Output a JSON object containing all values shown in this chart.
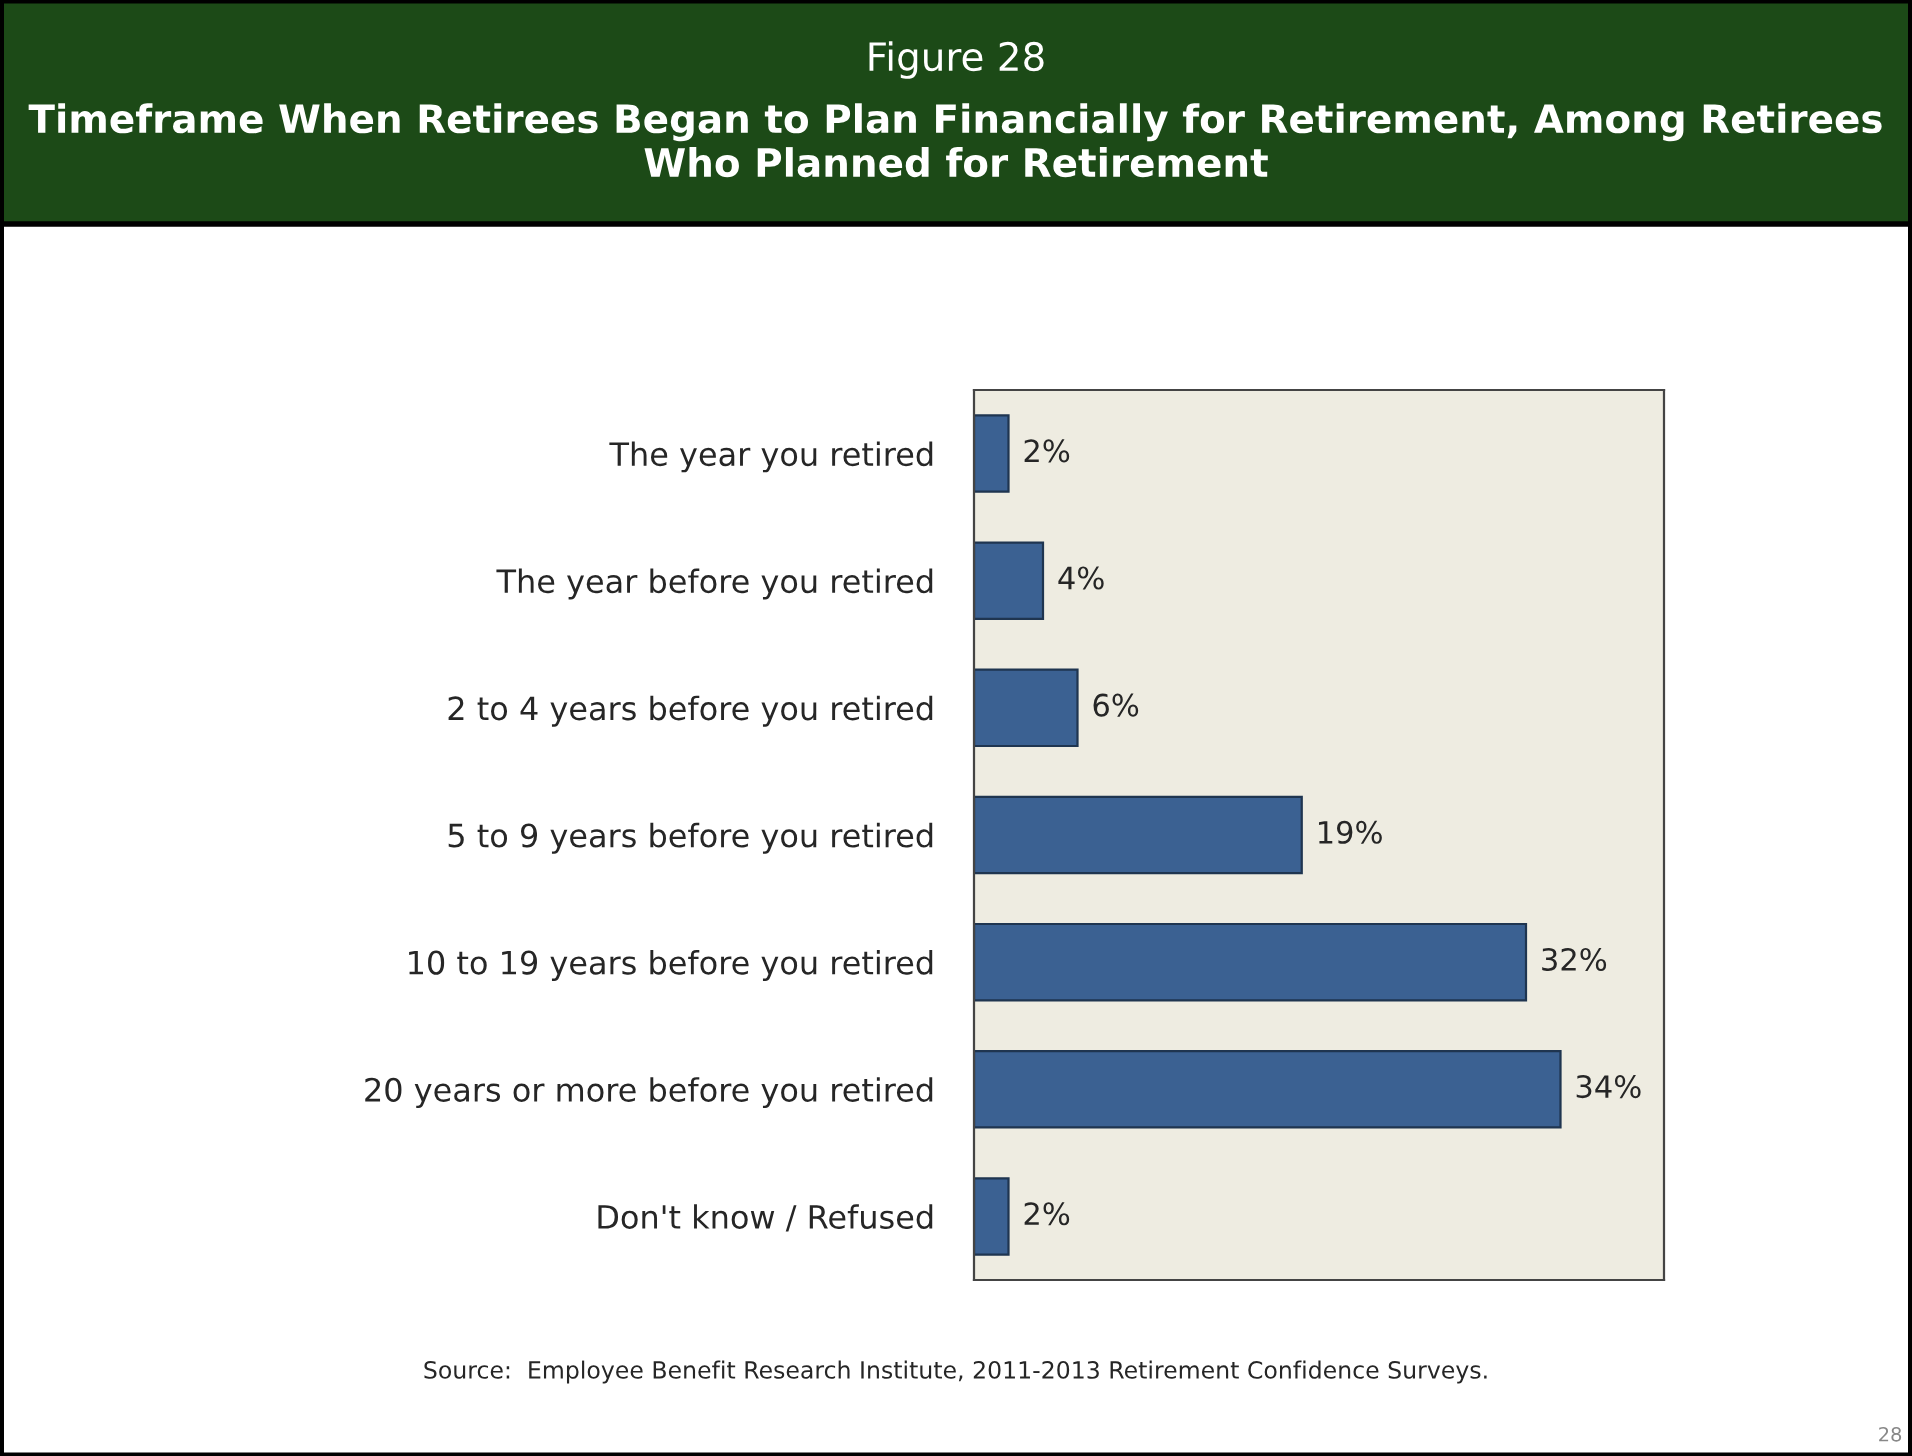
{
  "chart_data": {
    "type": "bar",
    "orientation": "horizontal",
    "title": "Figure 28",
    "subtitle": "Timeframe When Retirees Began to Plan Financially for Retirement, Among Retirees Who Planned for Retirement",
    "categories": [
      "The year you retired",
      "The year before you retired",
      "2 to 4 years before you retired",
      "5 to 9 years before you retired",
      "10 to 19 years before you retired",
      "20 years or more before you retired",
      "Don't know / Refused"
    ],
    "values": [
      2,
      4,
      6,
      19,
      32,
      34,
      2
    ],
    "color": "#3b6192",
    "value_labels": [
      "2%",
      "4%",
      "6%",
      "19%",
      "32%",
      "34%",
      "2%"
    ],
    "tick_labels": "y",
    "grid": false,
    "legend": false,
    "annotations": [
      "Source:  Employee Benefit Research Institute, 2011-2013 Retirement Confidence Surveys.",
      "28"
    ]
  }
}
